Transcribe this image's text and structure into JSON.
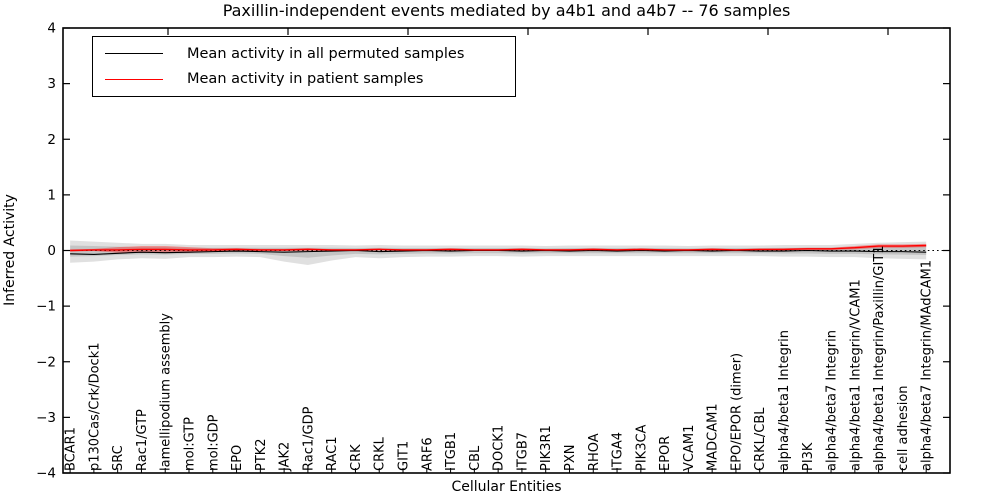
{
  "figure": {
    "title": "Paxillin-independent events mediated by a4b1 and a4b7 -- 76 samples",
    "xlabel": "Cellular Entities",
    "ylabel": "Inferred Activity"
  },
  "legend": {
    "items": [
      {
        "label": "Mean activity in all permuted samples",
        "color": "#000000"
      },
      {
        "label": "Mean activity in patient samples",
        "color": "#ff0000"
      }
    ]
  },
  "chart_data": {
    "type": "line",
    "title": "Paxillin-independent events mediated by a4b1 and a4b7 -- 76 samples",
    "xlabel": "Cellular Entities",
    "ylabel": "Inferred Activity",
    "ylim": [
      -4,
      4
    ],
    "y_ticks": [
      {
        "value": 4,
        "label": "4"
      },
      {
        "value": 3,
        "label": "3"
      },
      {
        "value": 2,
        "label": "2"
      },
      {
        "value": 1,
        "label": "1"
      },
      {
        "value": 0,
        "label": "0"
      },
      {
        "value": -1,
        "label": "−1"
      },
      {
        "value": -2,
        "label": "−2"
      },
      {
        "value": -3,
        "label": "−3"
      },
      {
        "value": -4,
        "label": "−4"
      }
    ],
    "grid": false,
    "legend_position": "upper left",
    "zero_line": 0,
    "categories": [
      "BCAR1",
      "p130Cas/Crk/Dock1",
      "SRC",
      "Rac1/GTP",
      "lamellipodium assembly",
      "mol:GTP",
      "mol:GDP",
      "EPO",
      "PTK2",
      "JAK2",
      "Rac1/GDP",
      "RAC1",
      "CRK",
      "CRKL",
      "GIT1",
      "ARF6",
      "ITGB1",
      "CBL",
      "DOCK1",
      "ITGB7",
      "PIK3R1",
      "PXN",
      "RHOA",
      "ITGA4",
      "PIK3CA",
      "EPOR",
      "VCAM1",
      "MADCAM1",
      "EPO/EPOR (dimer)",
      "CRKL/CBL",
      "alpha4/beta1 Integrin",
      "PI3K",
      "alpha4/beta7 Integrin",
      "alpha4/beta1 Integrin/VCAM1",
      "alpha4/beta1 Integrin/Paxillin/GIT1",
      "cell adhesion",
      "alpha4/beta7 Integrin/MAdCAM1"
    ],
    "series": [
      {
        "name": "Mean activity in all permuted samples",
        "color": "#000000",
        "values": [
          -0.06,
          -0.07,
          -0.05,
          -0.03,
          -0.04,
          -0.03,
          -0.02,
          -0.01,
          -0.02,
          -0.03,
          -0.02,
          -0.01,
          0.0,
          -0.02,
          -0.01,
          0.0,
          -0.01,
          0.0,
          0.0,
          -0.01,
          0.0,
          -0.01,
          0.0,
          -0.01,
          0.0,
          -0.01,
          0.0,
          -0.01,
          0.0,
          -0.01,
          -0.01,
          0.0,
          -0.01,
          -0.01,
          -0.02,
          -0.02,
          -0.03
        ]
      },
      {
        "name": "Mean activity in patient samples",
        "color": "#ff0000",
        "values": [
          0.0,
          0.01,
          0.01,
          0.02,
          0.02,
          0.01,
          0.01,
          0.02,
          0.01,
          0.01,
          0.02,
          0.01,
          0.01,
          0.02,
          0.01,
          0.01,
          0.02,
          0.01,
          0.01,
          0.02,
          0.01,
          0.01,
          0.02,
          0.01,
          0.02,
          0.01,
          0.01,
          0.02,
          0.01,
          0.02,
          0.02,
          0.03,
          0.03,
          0.05,
          0.08,
          0.08,
          0.09
        ]
      }
    ],
    "bands": [
      {
        "name": "permuted samples spread",
        "color": "#000000",
        "opacity": 0.12,
        "upper": [
          0.18,
          0.16,
          0.14,
          0.12,
          0.12,
          0.1,
          0.1,
          0.1,
          0.1,
          0.1,
          0.1,
          0.1,
          0.09,
          0.1,
          0.09,
          0.09,
          0.09,
          0.09,
          0.09,
          0.09,
          0.08,
          0.09,
          0.09,
          0.09,
          0.09,
          0.09,
          0.08,
          0.09,
          0.09,
          0.09,
          0.1,
          0.1,
          0.1,
          0.12,
          0.14,
          0.15,
          0.16
        ],
        "lower": [
          -0.22,
          -0.2,
          -0.16,
          -0.14,
          -0.15,
          -0.12,
          -0.12,
          -0.11,
          -0.12,
          -0.2,
          -0.26,
          -0.18,
          -0.12,
          -0.14,
          -0.12,
          -0.11,
          -0.11,
          -0.1,
          -0.1,
          -0.11,
          -0.1,
          -0.1,
          -0.1,
          -0.1,
          -0.1,
          -0.1,
          -0.1,
          -0.1,
          -0.1,
          -0.1,
          -0.11,
          -0.11,
          -0.12,
          -0.12,
          -0.14,
          -0.15,
          -0.16
        ]
      },
      {
        "name": "patient samples spread",
        "color": "#ff0000",
        "opacity": 0.35,
        "center_series": 1,
        "spread": [
          0.02,
          0.02,
          0.05,
          0.06,
          0.06,
          0.05,
          0.03,
          0.02,
          0.02,
          0.02,
          0.02,
          0.015,
          0.015,
          0.015,
          0.015,
          0.015,
          0.015,
          0.015,
          0.015,
          0.015,
          0.015,
          0.015,
          0.015,
          0.015,
          0.015,
          0.015,
          0.015,
          0.015,
          0.015,
          0.015,
          0.02,
          0.02,
          0.02,
          0.03,
          0.03,
          0.03,
          0.03
        ]
      }
    ]
  }
}
